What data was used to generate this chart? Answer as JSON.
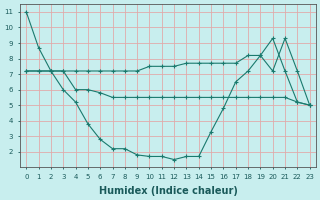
{
  "xlabel": "Humidex (Indice chaleur)",
  "x": [
    0,
    1,
    2,
    3,
    4,
    5,
    6,
    7,
    8,
    9,
    10,
    11,
    12,
    13,
    14,
    15,
    16,
    17,
    18,
    19,
    20,
    21,
    22,
    23
  ],
  "line1": [
    11.0,
    8.7,
    7.2,
    6.0,
    5.2,
    3.8,
    2.8,
    2.2,
    2.2,
    1.8,
    1.7,
    1.7,
    1.5,
    1.7,
    1.7,
    3.3,
    4.8,
    6.5,
    7.2,
    8.2,
    9.3,
    7.2,
    5.2,
    5.0
  ],
  "line2": [
    7.2,
    7.2,
    7.2,
    7.2,
    7.2,
    7.2,
    7.2,
    7.2,
    7.2,
    7.2,
    7.5,
    7.5,
    7.5,
    7.7,
    7.7,
    7.7,
    7.7,
    7.7,
    8.2,
    8.2,
    7.2,
    9.3,
    7.2,
    5.0
  ],
  "line3": [
    7.2,
    7.2,
    7.2,
    7.2,
    6.0,
    6.0,
    5.8,
    5.5,
    5.5,
    5.5,
    5.5,
    5.5,
    5.5,
    5.5,
    5.5,
    5.5,
    5.5,
    5.5,
    5.5,
    5.5,
    5.5,
    5.5,
    5.2,
    5.0
  ],
  "line_color": "#1a7a6e",
  "bg_color": "#c8eeee",
  "grid_color": "#e0aaaa",
  "ylim_min": 1.0,
  "ylim_max": 11.5,
  "xlim_min": -0.5,
  "xlim_max": 23.5,
  "yticks": [
    2,
    3,
    4,
    5,
    6,
    7,
    8,
    9,
    10,
    11
  ],
  "xticks": [
    0,
    1,
    2,
    3,
    4,
    5,
    6,
    7,
    8,
    9,
    10,
    11,
    12,
    13,
    14,
    15,
    16,
    17,
    18,
    19,
    20,
    21,
    22,
    23
  ],
  "xlabel_fontsize": 7,
  "tick_fontsize": 5,
  "linewidth": 0.8,
  "markersize": 3
}
